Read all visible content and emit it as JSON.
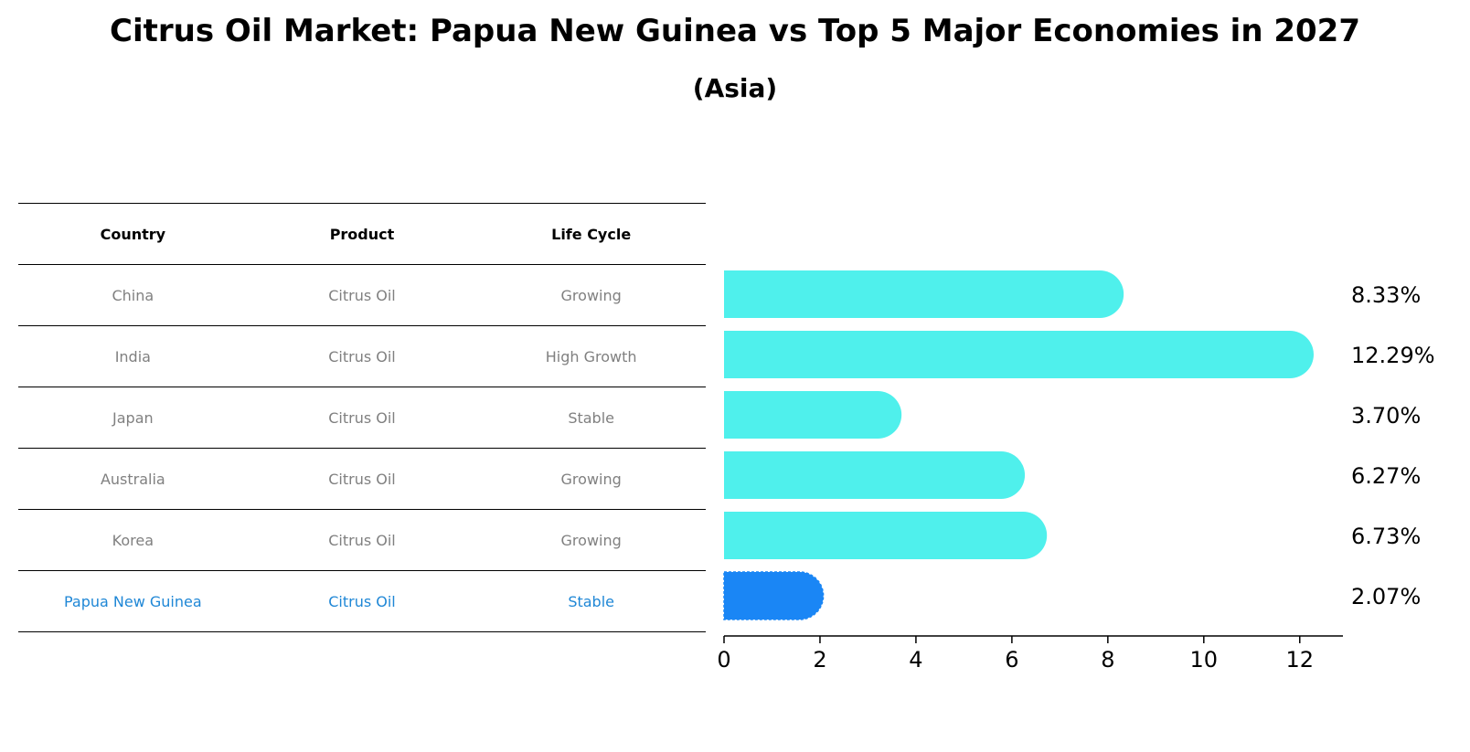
{
  "title": "Citrus Oil Market: Papua New Guinea vs Top 5 Major Economies in 2027",
  "subtitle": "(Asia)",
  "table": {
    "headers": [
      "Country",
      "Product",
      "Life Cycle"
    ],
    "rows": [
      {
        "country": "China",
        "product": "Citrus Oil",
        "life_cycle": "Growing"
      },
      {
        "country": "India",
        "product": "Citrus Oil",
        "life_cycle": "High Growth"
      },
      {
        "country": "Japan",
        "product": "Citrus Oil",
        "life_cycle": "Stable"
      },
      {
        "country": "Australia",
        "product": "Citrus Oil",
        "life_cycle": "Growing"
      },
      {
        "country": "Korea",
        "product": "Citrus Oil",
        "life_cycle": "Growing"
      },
      {
        "country": "Papua New Guinea",
        "product": "Citrus Oil",
        "life_cycle": "Stable"
      }
    ],
    "highlight_color": "#1f87d6",
    "text_color": "#808080"
  },
  "chart_data": {
    "type": "bar",
    "orientation": "horizontal",
    "categories": [
      "China",
      "India",
      "Japan",
      "Australia",
      "Korea",
      "Papua New Guinea"
    ],
    "values": [
      8.33,
      12.29,
      3.7,
      6.27,
      6.73,
      2.07
    ],
    "value_labels": [
      "8.33%",
      "12.29%",
      "3.70%",
      "6.27%",
      "6.73%",
      "2.07%"
    ],
    "highlight_index": 5,
    "bar_color": "#4ff0ec",
    "highlight_color": "#1a86f5",
    "xlim": [
      0,
      12.9
    ],
    "xticks": [
      0,
      2,
      4,
      6,
      8,
      10,
      12
    ],
    "xtick_labels": [
      "0",
      "2",
      "4",
      "6",
      "8",
      "10",
      "12"
    ],
    "xlabel": "",
    "ylabel": "",
    "grid": false
  }
}
